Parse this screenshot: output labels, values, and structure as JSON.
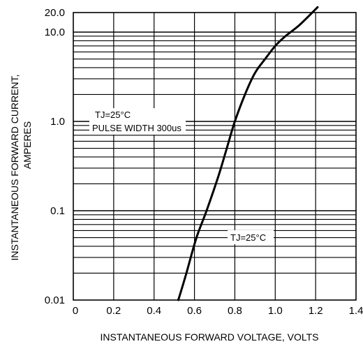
{
  "chart_data": {
    "type": "line",
    "title": "",
    "xlabel": "INSTANTANEOUS FORWARD VOLTAGE, VOLTS",
    "ylabel_line1": "INSTANTANEOUS FORWARD CURRENT,",
    "ylabel_line2": "AMPERES",
    "xlim": [
      0,
      1.4
    ],
    "ylim": [
      0.01,
      20
    ],
    "y_scale": "log",
    "grid": true,
    "x_ticks": [
      {
        "value": 0,
        "label": "0"
      },
      {
        "value": 0.2,
        "label": "0.2"
      },
      {
        "value": 0.4,
        "label": "0.4"
      },
      {
        "value": 0.6,
        "label": "0.6"
      },
      {
        "value": 0.8,
        "label": "0.8"
      },
      {
        "value": 1.0,
        "label": "1.0"
      },
      {
        "value": 1.2,
        "label": "1.2"
      },
      {
        "value": 1.4,
        "label": "1.4"
      }
    ],
    "y_ticks": [
      {
        "value": 0.01,
        "label": "0.01"
      },
      {
        "value": 0.1,
        "label": "0.1"
      },
      {
        "value": 1.0,
        "label": "1.0"
      },
      {
        "value": 10.0,
        "label": "10.0"
      },
      {
        "value": 20.0,
        "label": "20.0"
      }
    ],
    "annotations": {
      "conditions_line1": "TJ=25°C",
      "conditions_line2": "PULSE WIDTH 300us",
      "curve_label": "TJ=25°C"
    },
    "series": [
      {
        "values": [
          {
            "x": 0.52,
            "y": 0.01
          },
          {
            "x": 0.56,
            "y": 0.02
          },
          {
            "x": 0.61,
            "y": 0.05
          },
          {
            "x": 0.66,
            "y": 0.1
          },
          {
            "x": 0.72,
            "y": 0.25
          },
          {
            "x": 0.76,
            "y": 0.5
          },
          {
            "x": 0.8,
            "y": 1.0
          },
          {
            "x": 0.85,
            "y": 2.0
          },
          {
            "x": 0.9,
            "y": 3.5
          },
          {
            "x": 0.95,
            "y": 5.0
          },
          {
            "x": 1.0,
            "y": 7.0
          },
          {
            "x": 1.05,
            "y": 9.0
          },
          {
            "x": 1.12,
            "y": 12.0
          },
          {
            "x": 1.21,
            "y": 19.0
          }
        ]
      }
    ]
  }
}
